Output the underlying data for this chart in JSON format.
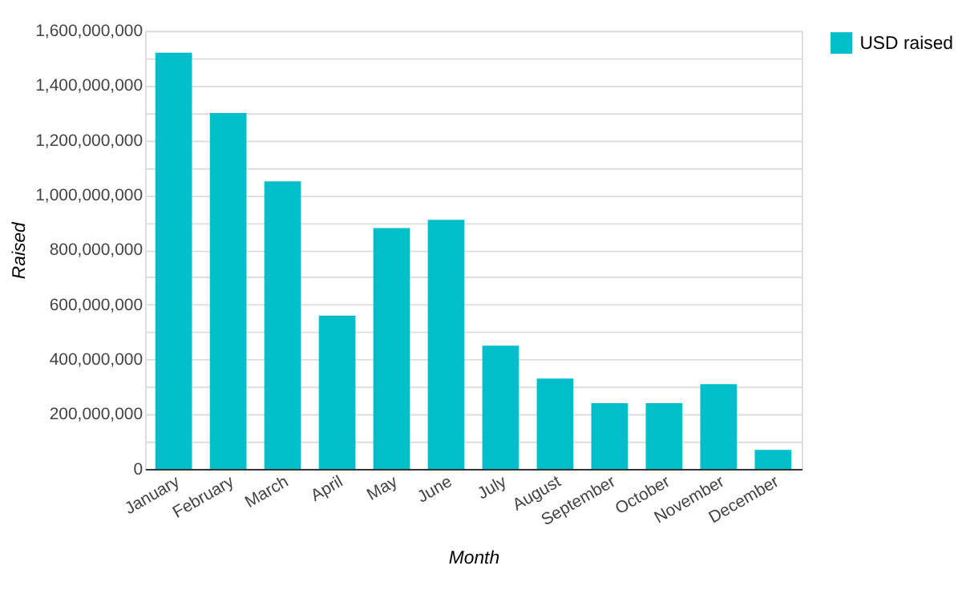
{
  "chart_data": {
    "type": "bar",
    "xlabel": "Month",
    "ylabel": "Raised",
    "categories": [
      "January",
      "February",
      "March",
      "April",
      "May",
      "June",
      "July",
      "August",
      "September",
      "October",
      "November",
      "December"
    ],
    "series": [
      {
        "name": "USD raised",
        "color": "#00bfcb",
        "values": [
          1520000000,
          1300000000,
          1050000000,
          560000000,
          880000000,
          910000000,
          450000000,
          330000000,
          240000000,
          240000000,
          310000000,
          70000000
        ]
      }
    ],
    "ylim": [
      0,
      1600000000
    ],
    "yticks": [
      0,
      {
        "value": 100000000,
        "label": null
      },
      {
        "value": 200000000,
        "label": "200,000,000"
      },
      {
        "value": 300000000,
        "label": null
      },
      {
        "value": 400000000,
        "label": "400,000,000"
      },
      {
        "value": 500000000,
        "label": null
      },
      {
        "value": 600000000,
        "label": "600,000,000"
      },
      {
        "value": 700000000,
        "label": null
      },
      {
        "value": 800000000,
        "label": "800,000,000"
      },
      {
        "value": 900000000,
        "label": null
      },
      {
        "value": 1000000000,
        "label": "1,000,000,000"
      },
      {
        "value": 1100000000,
        "label": null
      },
      {
        "value": 1200000000,
        "label": "1,200,000,000"
      },
      {
        "value": 1300000000,
        "label": null
      },
      {
        "value": 1400000000,
        "label": "1,400,000,000"
      },
      {
        "value": 1500000000,
        "label": null
      },
      {
        "value": 1600000000,
        "label": "1,600,000,000"
      }
    ],
    "grid": "y",
    "legend": "top right"
  }
}
